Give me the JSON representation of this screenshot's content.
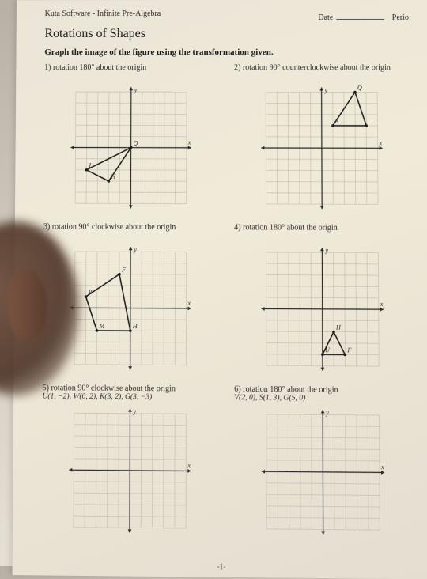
{
  "publisher": "Kuta Software - Infinite Pre-Algebra",
  "date_label": "Date",
  "period_label": "Perio",
  "title": "Rotations of Shapes",
  "instruction": "Graph the image of the figure using the transformation given.",
  "page_number": "-1-",
  "grid": {
    "range": 5,
    "cell": 14,
    "axis_color": "#2b2b2b",
    "grid_color": "#b8b2a4",
    "label_color": "#2b2b2b",
    "axis_label_fontsize": 8
  },
  "problems": [
    {
      "num": "1)",
      "prompt": "rotation 180° about the origin",
      "axes_labels": {
        "x": "x",
        "y": "y"
      },
      "shape": {
        "type": "polygon",
        "points": [
          [
            0,
            0
          ],
          [
            -2,
            -3
          ],
          [
            -4,
            -2
          ]
        ],
        "vertex_labels": [
          "Q",
          "H",
          "I"
        ],
        "stroke": "#1a1a1a",
        "fill": "none"
      }
    },
    {
      "num": "2)",
      "prompt": "rotation 90° counterclockwise about the origin",
      "axes_labels": {
        "x": "x",
        "y": "y"
      },
      "shape": {
        "type": "polygon",
        "points": [
          [
            3,
            5
          ],
          [
            1,
            2
          ],
          [
            4,
            2
          ]
        ],
        "vertex_labels": [
          "Q",
          "S",
          ""
        ],
        "stroke": "#1a1a1a",
        "fill": "none"
      }
    },
    {
      "num": "3)",
      "prompt": "rotation 90° clockwise about the origin",
      "axes_labels": {
        "x": "x",
        "y": "y"
      },
      "shape": {
        "type": "polygon",
        "points": [
          [
            -1,
            3
          ],
          [
            -4,
            1
          ],
          [
            -3,
            -2
          ],
          [
            0,
            -2
          ]
        ],
        "vertex_labels": [
          "F",
          "B",
          "M",
          "H"
        ],
        "stroke": "#1a1a1a",
        "fill": "none"
      }
    },
    {
      "num": "4)",
      "prompt": "rotation 180° about the origin",
      "axes_labels": {
        "x": "x",
        "y": "y"
      },
      "shape": {
        "type": "polygon",
        "points": [
          [
            1,
            -2
          ],
          [
            0,
            -4
          ],
          [
            2,
            -4
          ]
        ],
        "vertex_labels": [
          "H",
          "U",
          "F"
        ],
        "stroke": "#1a1a1a",
        "fill": "none"
      }
    },
    {
      "num": "5)",
      "prompt": "rotation 90° clockwise about the origin",
      "coords": "U(1, −2), W(0, 2), K(3, 2), G(3, −3)",
      "axes_labels": {
        "x": "x",
        "y": "y"
      },
      "shape": null
    },
    {
      "num": "6)",
      "prompt": "rotation 180° about the origin",
      "coords": "V(2, 0), S(1, 3), G(5, 0)",
      "axes_labels": {
        "x": "x",
        "y": "y"
      },
      "shape": null
    }
  ]
}
